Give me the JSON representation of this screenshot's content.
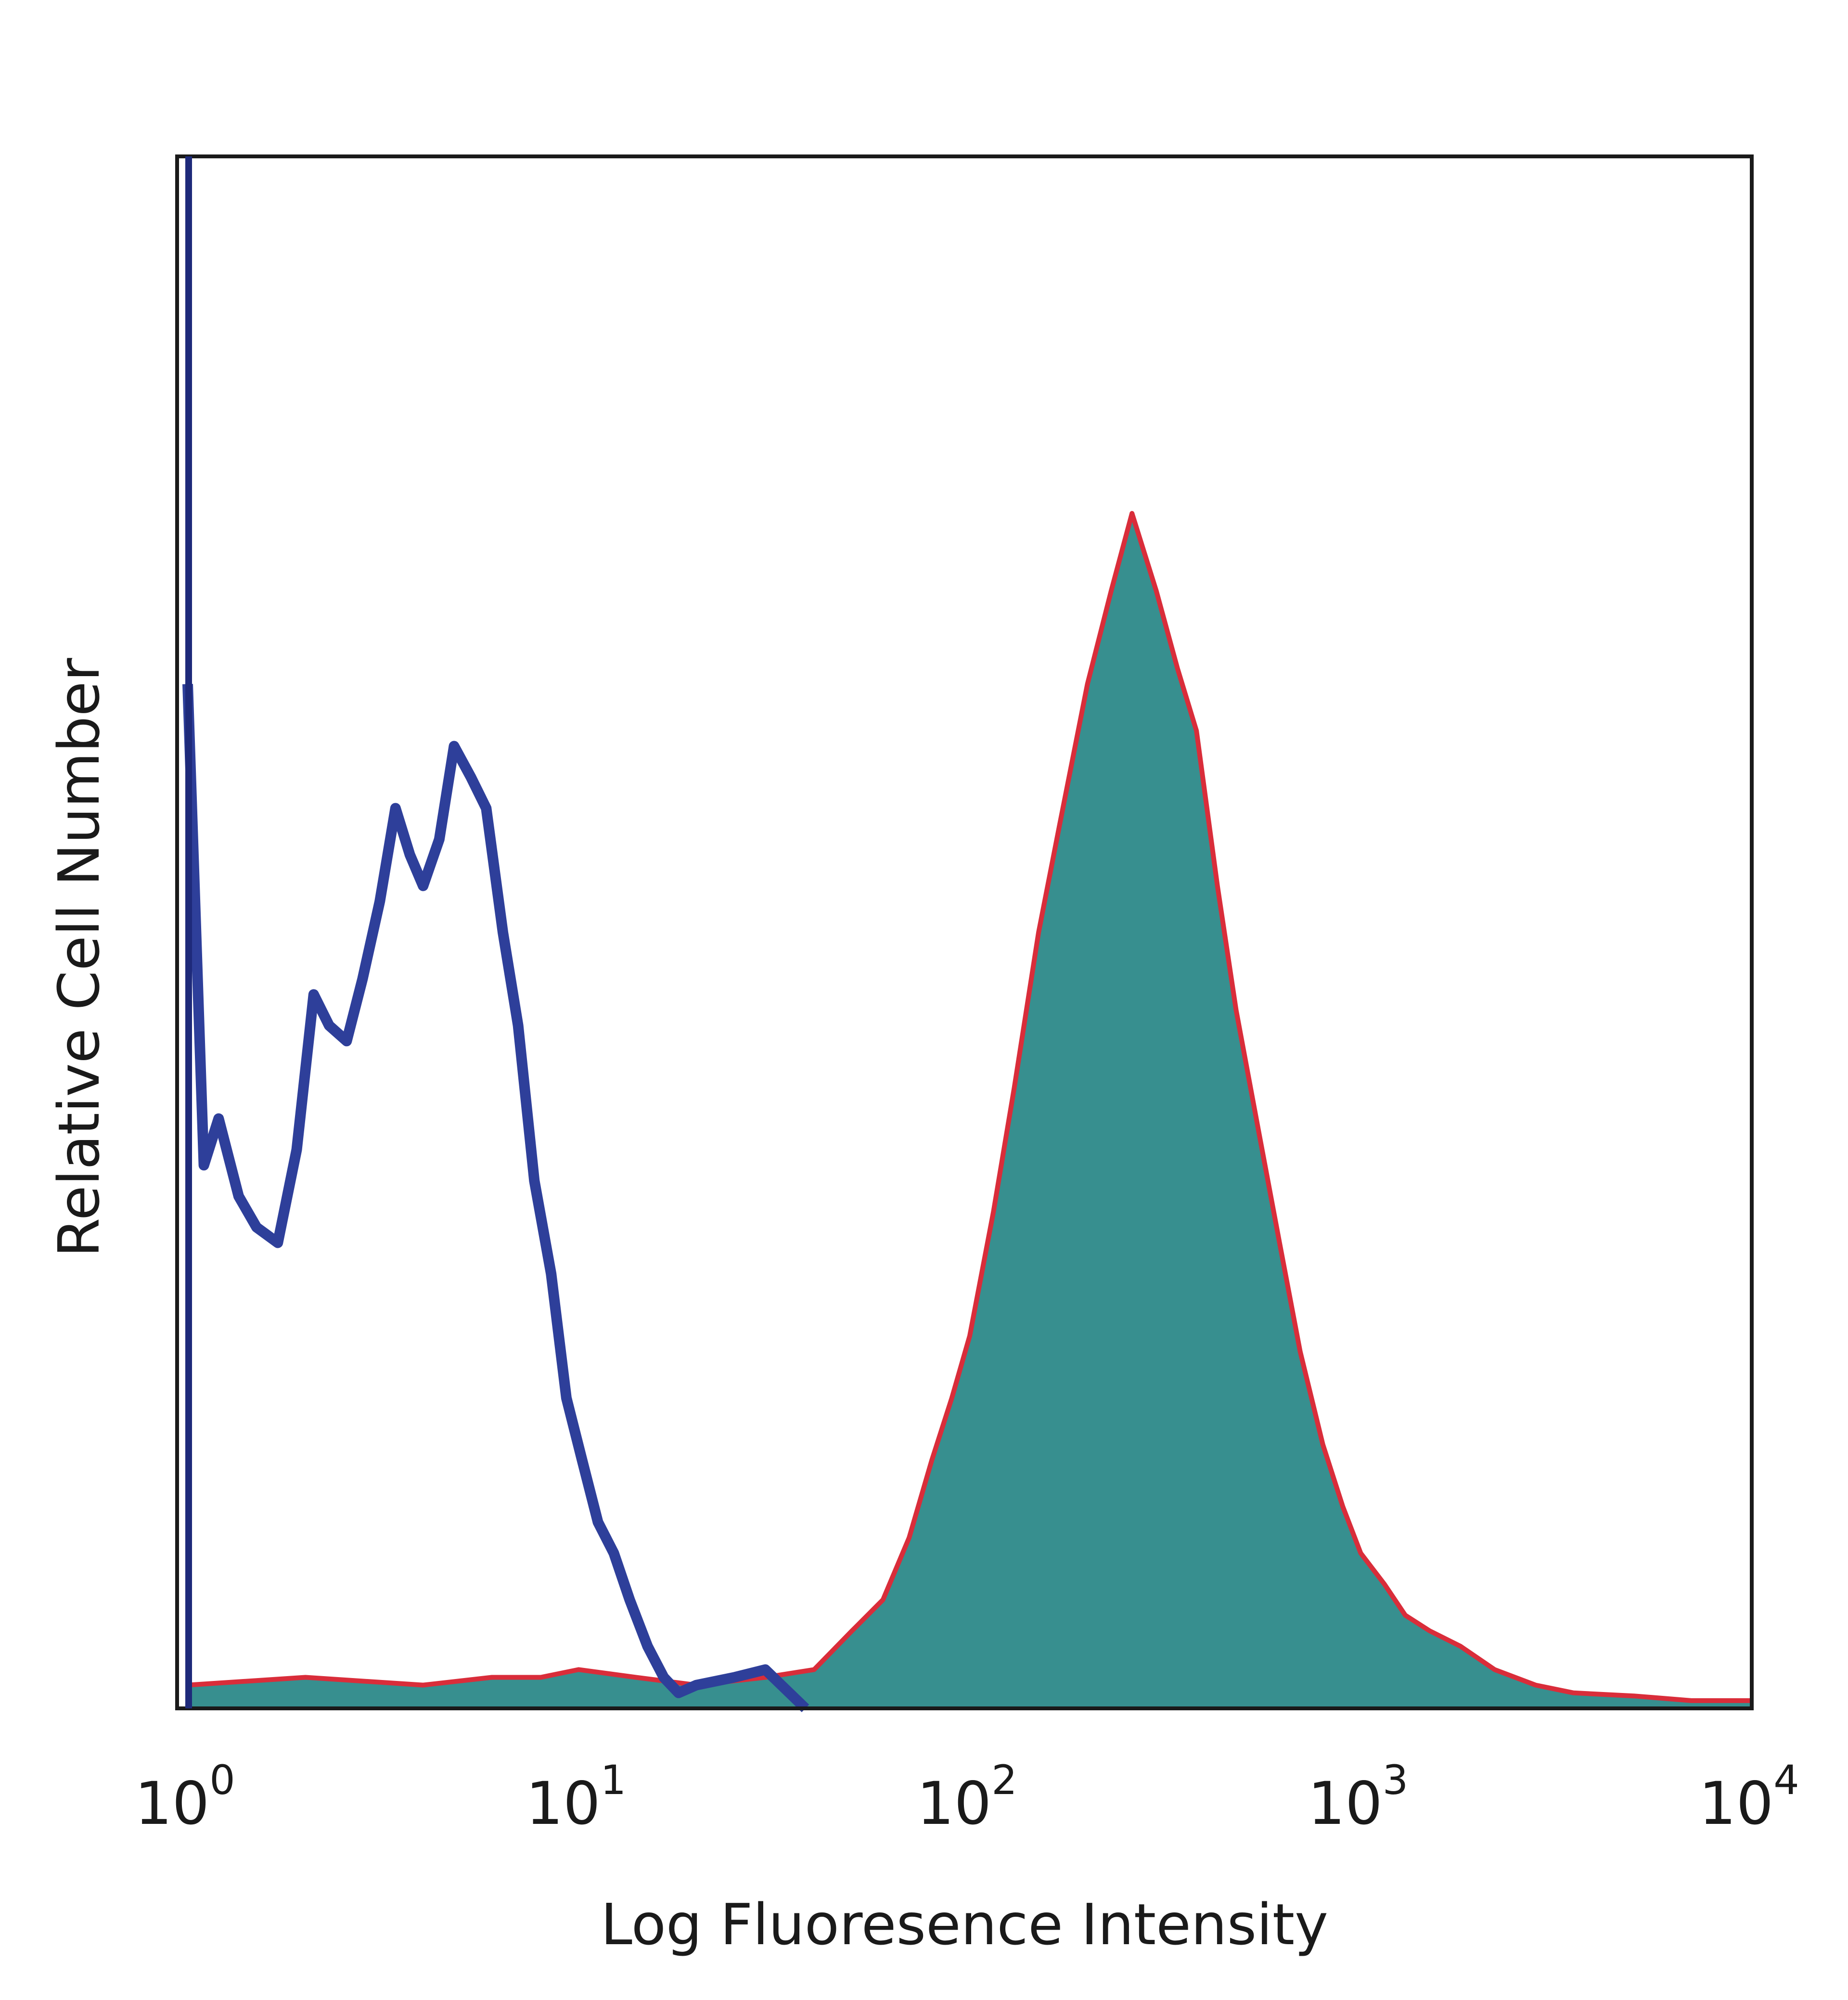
{
  "chart_data": {
    "type": "area",
    "xlabel": "Log Fluoresence Intensity",
    "ylabel": "Relative Cell Number",
    "xscale": "log",
    "xlim": [
      1,
      10000
    ],
    "ylim": [
      0,
      100
    ],
    "grid": false,
    "x_ticks": [
      {
        "base": "10",
        "exp": "0",
        "value": 1
      },
      {
        "base": "10",
        "exp": "1",
        "value": 10
      },
      {
        "base": "10",
        "exp": "2",
        "value": 100
      },
      {
        "base": "10",
        "exp": "3",
        "value": 1000
      },
      {
        "base": "10",
        "exp": "4",
        "value": 10000
      }
    ],
    "series": [
      {
        "style": "outline",
        "color": "#2e3f9a",
        "x": [
          1.0,
          1.1,
          1.2,
          1.35,
          1.5,
          1.7,
          1.9,
          2.1,
          2.3,
          2.55,
          2.8,
          3.1,
          3.4,
          3.7,
          4.0,
          4.4,
          4.8,
          5.3,
          5.8,
          6.4,
          7.0,
          7.7,
          8.5,
          9.3,
          10.2,
          11.2,
          12.3,
          13.5,
          15.0,
          16.5,
          18.0,
          20.0,
          25.0,
          30.0,
          38.0
        ],
        "values": [
          66,
          35,
          38,
          33,
          31,
          30,
          36,
          46,
          44,
          43,
          47,
          52,
          58,
          55,
          53,
          56,
          62,
          60,
          58,
          50,
          44,
          34,
          28,
          20,
          16,
          12,
          10,
          7,
          4,
          2,
          1,
          1.5,
          2,
          2.5,
          0
        ]
      },
      {
        "style": "filled",
        "color": "#378f8f",
        "stroke": "#d92d3a",
        "x": [
          1.0,
          2.0,
          4.0,
          6.0,
          8.0,
          10.0,
          14.0,
          20.0,
          30.0,
          40.0,
          50.0,
          60.0,
          70.0,
          80.0,
          90.0,
          100.0,
          115.0,
          130.0,
          150.0,
          170.0,
          200.0,
          230.0,
          260.0,
          300.0,
          340.0,
          380.0,
          430.0,
          480.0,
          550.0,
          620.0,
          700.0,
          800.0,
          900.0,
          1000.0,
          1150.0,
          1300.0,
          1500.0,
          1800.0,
          2200.0,
          2800.0,
          3500.0,
          5000.0,
          7000.0,
          10000.0
        ],
        "values": [
          1.5,
          2,
          1.5,
          2,
          2,
          2.5,
          2,
          1.5,
          2,
          2.5,
          5,
          7,
          11,
          16,
          20,
          24,
          32,
          40,
          50,
          57,
          66,
          72,
          77,
          72,
          67,
          63,
          53,
          45,
          37,
          30,
          23,
          17,
          13,
          10,
          8,
          6,
          5,
          4,
          2.5,
          1.5,
          1,
          0.8,
          0.5,
          0.5
        ]
      }
    ]
  }
}
